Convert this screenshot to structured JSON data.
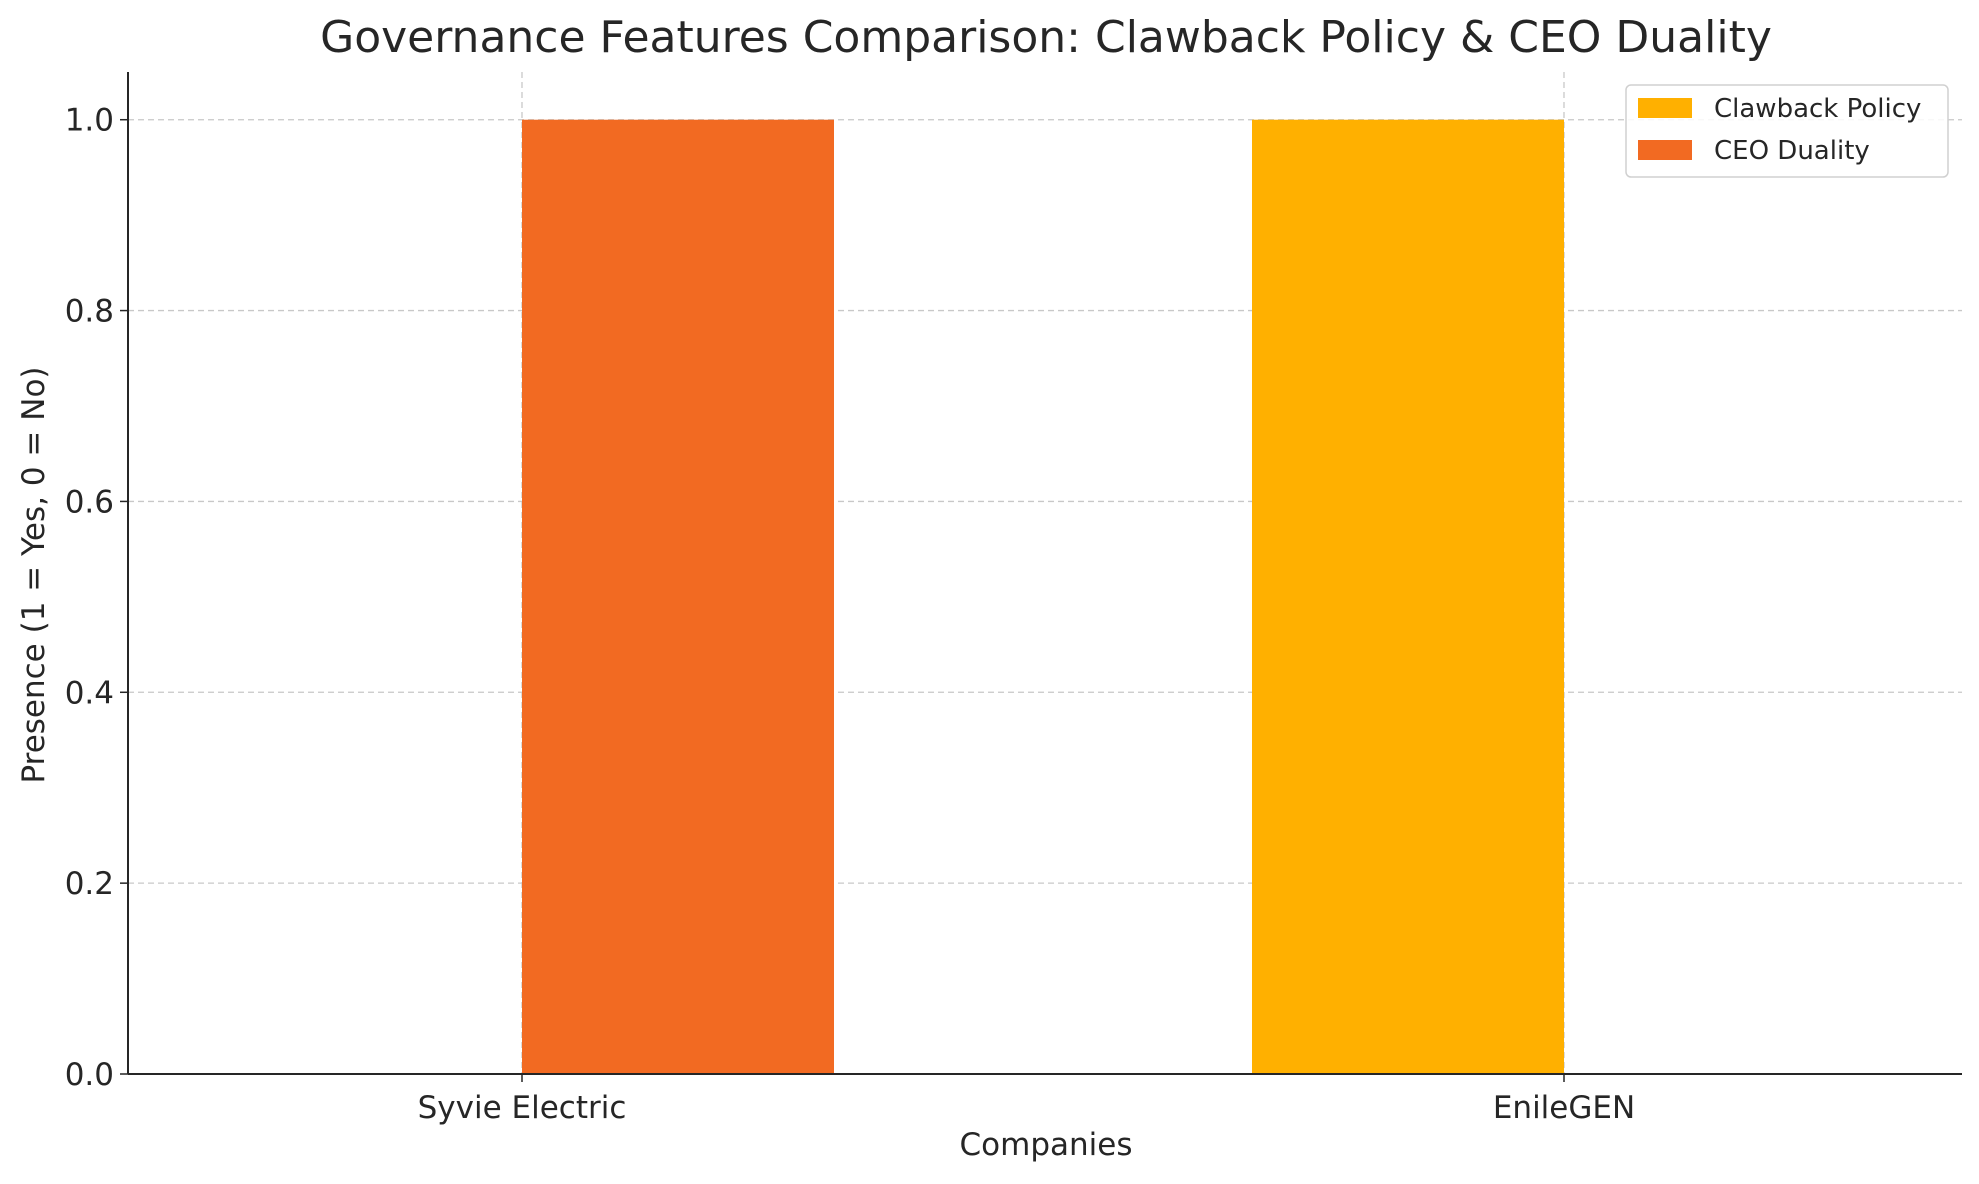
{
  "chart_data": {
    "type": "bar",
    "title": "Governance Features Comparison: Clawback Policy & CEO Duality",
    "xlabel": "Companies",
    "ylabel": "Presence (1 = Yes, 0 = No)",
    "categories": [
      "Syvie Electric",
      "EnileGEN"
    ],
    "series": [
      {
        "name": "Clawback Policy",
        "values": [
          0,
          1
        ],
        "color": "#FFB000"
      },
      {
        "name": "CEO Duality",
        "values": [
          1,
          0
        ],
        "color": "#F26A22"
      }
    ],
    "ylim": [
      0,
      1.05
    ],
    "yticks": [
      "0.0",
      "0.2",
      "0.4",
      "0.6",
      "0.8",
      "1.0"
    ],
    "grid": true,
    "legend_position": "top-right"
  }
}
